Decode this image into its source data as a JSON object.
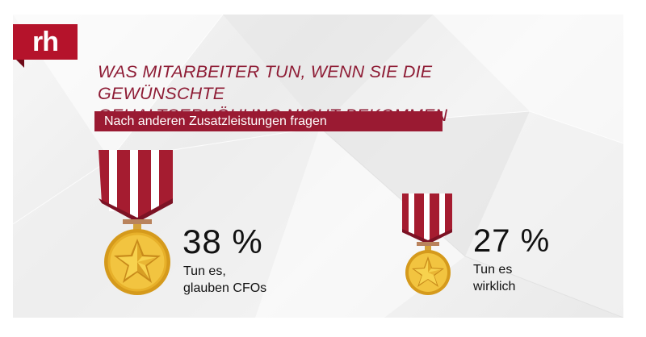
{
  "logo": {
    "text": "rh"
  },
  "header": {
    "title_line1": "WAS MITARBEITER TUN, WENN SIE DIE GEWÜNSCHTE",
    "title_line2": "GEHALTSERHÖHUNG NICHT BEKOMMEN",
    "subtitle": "Nach anderen Zusatzleistungen fragen"
  },
  "stats": [
    {
      "value": "38 %",
      "caption_line1": "Tun es,",
      "caption_line2": "glauben CFOs"
    },
    {
      "value": "27 %",
      "caption_line1": "Tun es",
      "caption_line2": "wirklich"
    }
  ],
  "colors": {
    "brand": "#b5132b",
    "title": "#8e1c35",
    "ribbon_red": "#a51c30",
    "medal_gold": "#e3b436"
  },
  "icons": [
    "medal-icon",
    "medal-icon"
  ]
}
